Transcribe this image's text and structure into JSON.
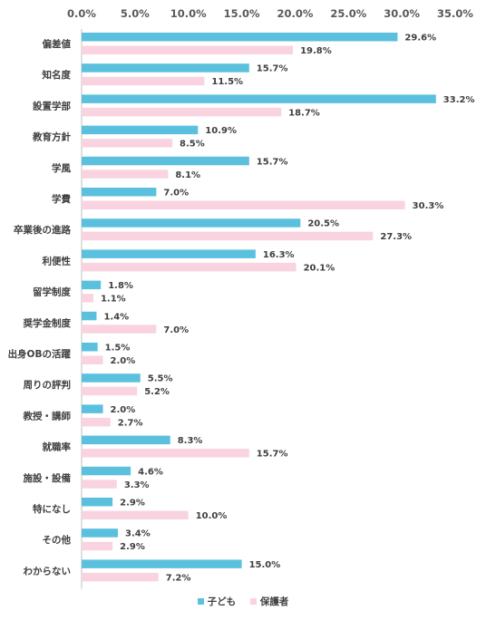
{
  "chart_data": {
    "type": "bar",
    "orientation": "horizontal",
    "categories": [
      "偏差値",
      "知名度",
      "設置学部",
      "教育方針",
      "学風",
      "学費",
      "卒業後の進路",
      "利便性",
      "留学制度",
      "奨学金制度",
      "出身OBの活躍",
      "周りの評判",
      "教授・講師",
      "就職率",
      "施設・設備",
      "特になし",
      "その他",
      "わからない"
    ],
    "series": [
      {
        "name": "子ども",
        "color": "#5bc0de",
        "values": [
          29.6,
          15.7,
          33.2,
          10.9,
          15.7,
          7.0,
          20.5,
          16.3,
          1.8,
          1.4,
          1.5,
          5.5,
          2.0,
          8.3,
          4.6,
          2.9,
          3.4,
          15.0
        ],
        "labels": [
          "29.6%",
          "15.7%",
          "33.2%",
          "10.9%",
          "15.7%",
          "7.0%",
          "20.5%",
          "16.3%",
          "1.8%",
          "1.4%",
          "1.5%",
          "5.5%",
          "2.0%",
          "8.3%",
          "4.6%",
          "2.9%",
          "3.4%",
          "15.0%"
        ]
      },
      {
        "name": "保護者",
        "color": "#f9d4e0",
        "values": [
          19.8,
          11.5,
          18.7,
          8.5,
          8.1,
          30.3,
          27.3,
          20.1,
          1.1,
          7.0,
          2.0,
          5.2,
          2.7,
          15.7,
          3.3,
          10.0,
          2.9,
          7.2
        ],
        "labels": [
          "19.8%",
          "11.5%",
          "18.7%",
          "8.5%",
          "8.1%",
          "30.3%",
          "27.3%",
          "20.1%",
          "1.1%",
          "7.0%",
          "2.0%",
          "5.2%",
          "2.7%",
          "15.7%",
          "3.3%",
          "10.0%",
          "2.9%",
          "7.2%"
        ]
      }
    ],
    "highlights": [
      {
        "series": 0,
        "index": 0,
        "color": "#e8692a"
      },
      {
        "series": 0,
        "index": 2,
        "color": "#e8692a"
      },
      {
        "series": 0,
        "index": 6,
        "color": "#e8692a"
      },
      {
        "series": 1,
        "index": 5,
        "color": "#c00000"
      },
      {
        "series": 1,
        "index": 6,
        "color": "#c00000"
      },
      {
        "series": 1,
        "index": 7,
        "color": "#c00000"
      }
    ],
    "xlim": [
      0,
      35
    ],
    "xticks": [
      0,
      5,
      10,
      15,
      20,
      25,
      30,
      35
    ],
    "xtick_labels": [
      "0.0%",
      "5.0%",
      "10.0%",
      "15.0%",
      "20.0%",
      "25.0%",
      "30.0%",
      "35.0%"
    ],
    "axis_position": "top",
    "legend_position": "bottom-center",
    "grid": false
  },
  "legend": {
    "child": "子ども",
    "parent": "保護者"
  }
}
